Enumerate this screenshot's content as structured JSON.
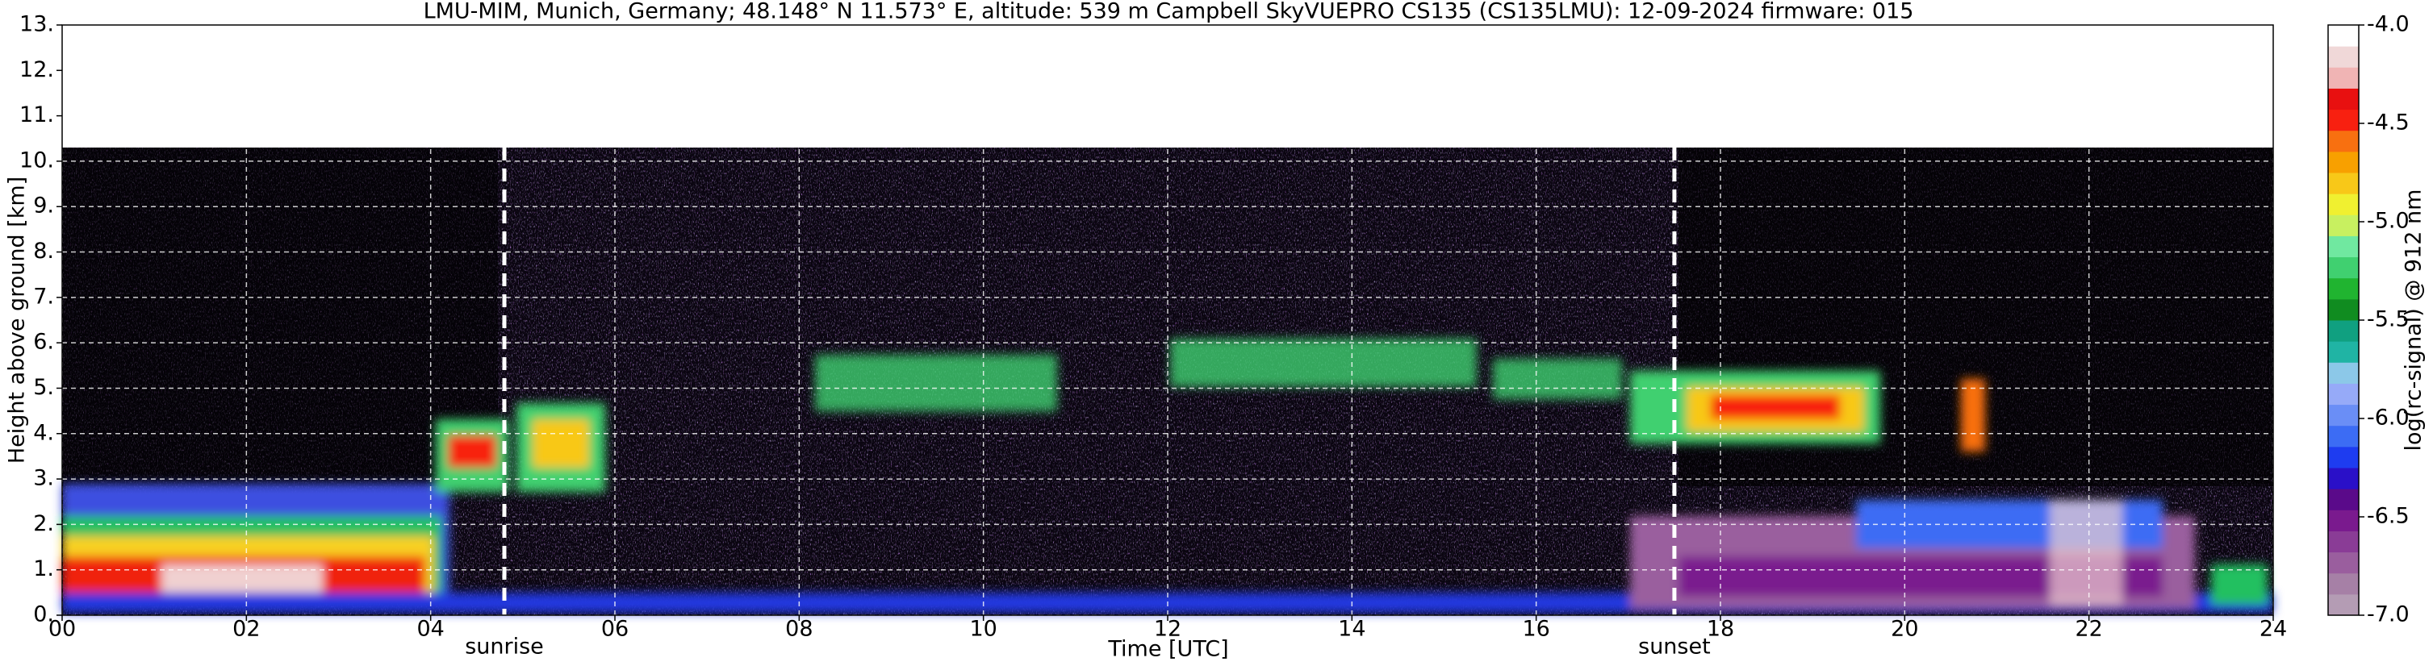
{
  "chart_data": {
    "type": "heatmap",
    "title": "LMU-MIM, Munich, Germany; 48.148° N 11.573° E, altitude: 539 m    Campbell SkyVUEPRO CS135 (CS135LMU): 12-09-2024    firmware: 015",
    "x_label": "Time [UTC]",
    "y_label": "Height above ground [km]",
    "xlim": [
      0,
      24
    ],
    "xticks": [
      {
        "value": 0,
        "label": "00"
      },
      {
        "value": 2,
        "label": "02"
      },
      {
        "value": 4,
        "label": "04"
      },
      {
        "value": 6,
        "label": "06"
      },
      {
        "value": 8,
        "label": "08"
      },
      {
        "value": 10,
        "label": "10"
      },
      {
        "value": 12,
        "label": "12"
      },
      {
        "value": 14,
        "label": "14"
      },
      {
        "value": 16,
        "label": "16"
      },
      {
        "value": 18,
        "label": "18"
      },
      {
        "value": 20,
        "label": "20"
      },
      {
        "value": 22,
        "label": "22"
      },
      {
        "value": 24,
        "label": "24"
      }
    ],
    "ylim": [
      0,
      13
    ],
    "yticks": [
      {
        "value": 0,
        "label": "0."
      },
      {
        "value": 1,
        "label": "1."
      },
      {
        "value": 2,
        "label": "2."
      },
      {
        "value": 3,
        "label": "3."
      },
      {
        "value": 4,
        "label": "4."
      },
      {
        "value": 5,
        "label": "5."
      },
      {
        "value": 6,
        "label": "6."
      },
      {
        "value": 7,
        "label": "7."
      },
      {
        "value": 8,
        "label": "8."
      },
      {
        "value": 9,
        "label": "9."
      },
      {
        "value": 10,
        "label": "10."
      },
      {
        "value": 11,
        "label": "11."
      },
      {
        "value": 12,
        "label": "12."
      },
      {
        "value": 13,
        "label": "13."
      }
    ],
    "grid": true,
    "colorbar_label": "log(rc-signal) @ 912 nm",
    "colorbar_lim": [
      -7,
      -4
    ],
    "colorbar_ticks": [
      {
        "value": -7,
        "label": "-7.0"
      },
      -6.5,
      {
        "value": -6,
        "label": "-6.0"
      },
      -5.5,
      {
        "value": -5,
        "label": "-5.0"
      },
      -4.5,
      {
        "value": -4,
        "label": "-4.0"
      }
    ],
    "colorbar_colors": [
      "#b49cb4",
      "#a680a6",
      "#9a5e9e",
      "#8a3c96",
      "#7a1a8e",
      "#5a0a8a",
      "#2a10c8",
      "#1e3cf0",
      "#3c6cf4",
      "#6a8ef6",
      "#96aaf8",
      "#8cc8e8",
      "#20b4a4",
      "#10a080",
      "#108c20",
      "#20b430",
      "#40d070",
      "#70e8a0",
      "#c8f060",
      "#f0f030",
      "#f8c818",
      "#f8a000",
      "#f87010",
      "#f82010",
      "#e81010",
      "#f0b4b4",
      "#f0d8d8",
      "#ffffff"
    ],
    "annotations": [
      {
        "text": "sunrise",
        "x": 4.8
      },
      {
        "text": "sunset",
        "x": 17.5
      }
    ]
  }
}
